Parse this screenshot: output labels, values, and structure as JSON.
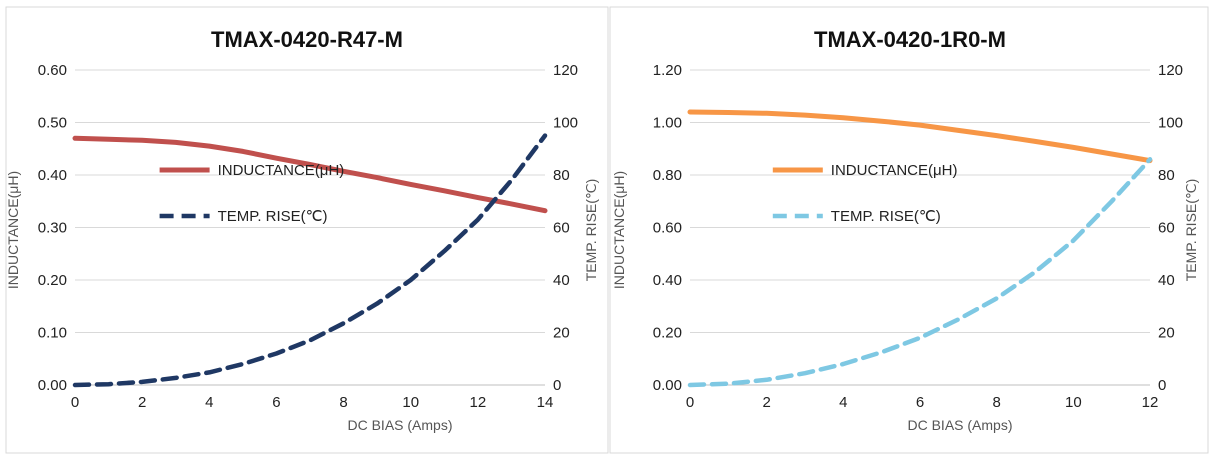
{
  "chart_data": [
    {
      "type": "line",
      "title": "TMAX-0420-R47-M",
      "xlabel": "DC BIAS (Amps)",
      "ylabel_left": "INDUCTANCE(μH)",
      "ylabel_right": "TEMP. RISE(℃)",
      "x_ticks": [
        "0",
        "2",
        "4",
        "6",
        "8",
        "10",
        "12",
        "14"
      ],
      "y_left_ticks": [
        "0.00",
        "0.10",
        "0.20",
        "0.30",
        "0.40",
        "0.50",
        "0.60"
      ],
      "y_right_ticks": [
        "0",
        "20",
        "40",
        "60",
        "80",
        "100",
        "120"
      ],
      "xlim": [
        0,
        14
      ],
      "ylim_left": [
        0,
        0.6
      ],
      "ylim_right": [
        0,
        120
      ],
      "series": [
        {
          "name": "INDUCTANCE(μH)",
          "axis": "left",
          "color": "#c0504d",
          "x": [
            0,
            1,
            2,
            3,
            4,
            5,
            6,
            7,
            8,
            9,
            10,
            11,
            12,
            13,
            14
          ],
          "y": [
            0.47,
            0.468,
            0.466,
            0.462,
            0.455,
            0.445,
            0.432,
            0.42,
            0.407,
            0.395,
            0.382,
            0.37,
            0.357,
            0.345,
            0.332
          ]
        },
        {
          "name": "TEMP. RISE(℃)",
          "axis": "right",
          "color": "#1f3864",
          "x": [
            0,
            1,
            2,
            3,
            4,
            5,
            6,
            7,
            8,
            9,
            10,
            11,
            12,
            13,
            14
          ],
          "y": [
            0,
            0.3,
            1.2,
            2.7,
            4.8,
            8,
            12,
            17,
            23.5,
            31,
            40,
            51,
            63,
            78,
            95
          ]
        }
      ]
    },
    {
      "type": "line",
      "title": "TMAX-0420-1R0-M",
      "xlabel": "DC BIAS (Amps)",
      "ylabel_left": "INDUCTANCE(μH)",
      "ylabel_right": "TEMP. RISE(℃)",
      "x_ticks": [
        "0",
        "2",
        "4",
        "6",
        "8",
        "10",
        "12"
      ],
      "y_left_ticks": [
        "0.00",
        "0.20",
        "0.40",
        "0.60",
        "0.80",
        "1.00",
        "1.20"
      ],
      "y_right_ticks": [
        "0",
        "20",
        "40",
        "60",
        "80",
        "100",
        "120"
      ],
      "xlim": [
        0,
        12
      ],
      "ylim_left": [
        0,
        1.2
      ],
      "ylim_right": [
        0,
        120
      ],
      "series": [
        {
          "name": "INDUCTANCE(μH)",
          "axis": "left",
          "color": "#f79646",
          "x": [
            0,
            1,
            2,
            3,
            4,
            5,
            6,
            7,
            8,
            9,
            10,
            11,
            12
          ],
          "y": [
            1.04,
            1.038,
            1.035,
            1.028,
            1.018,
            1.005,
            0.99,
            0.97,
            0.95,
            0.928,
            0.905,
            0.88,
            0.855
          ]
        },
        {
          "name": "TEMP. RISE(℃)",
          "axis": "right",
          "color": "#7ec8e3",
          "x": [
            0,
            1,
            2,
            3,
            4,
            5,
            6,
            7,
            8,
            9,
            10,
            11,
            12
          ],
          "y": [
            0,
            0.5,
            2,
            4.5,
            8,
            12.5,
            18,
            25,
            33,
            43,
            55,
            70,
            86
          ]
        }
      ]
    }
  ]
}
